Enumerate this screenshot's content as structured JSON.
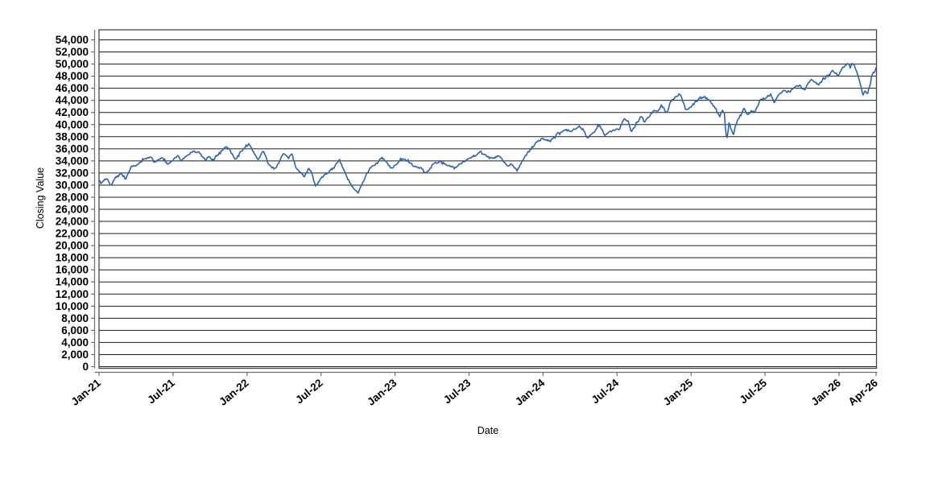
{
  "chart_data": {
    "type": "line",
    "title": "",
    "xlabel": "Date",
    "ylabel": "Closing Value",
    "x_unit": "months-since-Jan-2021",
    "x_range": [
      0,
      63
    ],
    "y_axis": {
      "min": 0,
      "max": 54000,
      "tick_step": 2000,
      "grid": true
    },
    "y_tick_labels": [
      "0",
      "2,000",
      "4,000",
      "6,000",
      "8,000",
      "10,000",
      "12,000",
      "14,000",
      "16,000",
      "18,000",
      "20,000",
      "22,000",
      "24,000",
      "26,000",
      "28,000",
      "30,000",
      "32,000",
      "34,000",
      "36,000",
      "38,000",
      "40,000",
      "42,000",
      "44,000",
      "46,000",
      "48,000",
      "50,000",
      "52,000",
      "54,000"
    ],
    "x_ticks": [
      {
        "t": 0,
        "label": "Jan-21"
      },
      {
        "t": 6,
        "label": "Jul-21"
      },
      {
        "t": 12,
        "label": "Jan-22"
      },
      {
        "t": 18,
        "label": "Jul-22"
      },
      {
        "t": 24,
        "label": "Jan-23"
      },
      {
        "t": 30,
        "label": "Jul-23"
      },
      {
        "t": 36,
        "label": "Jan-24"
      },
      {
        "t": 42,
        "label": "Jul-24"
      },
      {
        "t": 48,
        "label": "Jan-25"
      },
      {
        "t": 54,
        "label": "Jul-25"
      },
      {
        "t": 60,
        "label": "Jan-26"
      },
      {
        "t": 63,
        "label": "Apr-26"
      }
    ],
    "legend": "none",
    "series": [
      {
        "name": "Closing Value",
        "color": "#2d64ad",
        "anchors": [
          [
            0,
            30600
          ],
          [
            0.15,
            30250
          ],
          [
            0.45,
            30900
          ],
          [
            0.65,
            31150
          ],
          [
            0.97,
            29990
          ],
          [
            1.4,
            31450
          ],
          [
            1.8,
            31950
          ],
          [
            2.15,
            30950
          ],
          [
            2.6,
            33000
          ],
          [
            3.0,
            33150
          ],
          [
            3.55,
            34150
          ],
          [
            4.25,
            34750
          ],
          [
            4.45,
            33650
          ],
          [
            5.15,
            34700
          ],
          [
            5.6,
            33350
          ],
          [
            6.4,
            34950
          ],
          [
            6.65,
            34000
          ],
          [
            7.2,
            34950
          ],
          [
            7.55,
            35550
          ],
          [
            8.1,
            35400
          ],
          [
            8.65,
            34050
          ],
          [
            8.9,
            34800
          ],
          [
            9.15,
            34050
          ],
          [
            9.6,
            34900
          ],
          [
            10.25,
            36400
          ],
          [
            10.65,
            35750
          ],
          [
            11.05,
            34100
          ],
          [
            11.5,
            35600
          ],
          [
            11.95,
            36450
          ],
          [
            12.15,
            36750
          ],
          [
            12.9,
            34200
          ],
          [
            13.3,
            35700
          ],
          [
            13.8,
            33200
          ],
          [
            14.3,
            32700
          ],
          [
            14.95,
            35250
          ],
          [
            15.35,
            34450
          ],
          [
            15.65,
            35100
          ],
          [
            15.95,
            33000
          ],
          [
            16.3,
            32250
          ],
          [
            16.65,
            31300
          ],
          [
            17.0,
            32950
          ],
          [
            17.25,
            31900
          ],
          [
            17.55,
            29950
          ],
          [
            18.0,
            31100
          ],
          [
            18.95,
            32800
          ],
          [
            19.5,
            34100
          ],
          [
            20.1,
            31300
          ],
          [
            20.55,
            29600
          ],
          [
            20.97,
            28725
          ],
          [
            21.35,
            30350
          ],
          [
            21.95,
            32850
          ],
          [
            22.5,
            33550
          ],
          [
            22.97,
            34550
          ],
          [
            23.3,
            33800
          ],
          [
            23.65,
            32800
          ],
          [
            23.97,
            33150
          ],
          [
            24.45,
            34300
          ],
          [
            25.05,
            34050
          ],
          [
            25.6,
            32900
          ],
          [
            26.05,
            33000
          ],
          [
            26.5,
            31900
          ],
          [
            27.1,
            33450
          ],
          [
            27.6,
            33950
          ],
          [
            28.2,
            33350
          ],
          [
            28.85,
            32800
          ],
          [
            29.3,
            33550
          ],
          [
            29.97,
            34400
          ],
          [
            30.55,
            34950
          ],
          [
            30.9,
            35550
          ],
          [
            31.5,
            34750
          ],
          [
            31.85,
            34350
          ],
          [
            32.45,
            34850
          ],
          [
            33.1,
            33100
          ],
          [
            33.45,
            33450
          ],
          [
            33.9,
            32420
          ],
          [
            34.4,
            34300
          ],
          [
            34.8,
            35400
          ],
          [
            35.45,
            37050
          ],
          [
            35.95,
            37690
          ],
          [
            36.3,
            37450
          ],
          [
            36.6,
            37300
          ],
          [
            37.1,
            38300
          ],
          [
            37.8,
            39100
          ],
          [
            38.3,
            38900
          ],
          [
            38.93,
            39800
          ],
          [
            39.3,
            39000
          ],
          [
            39.6,
            37800
          ],
          [
            40.1,
            38650
          ],
          [
            40.57,
            39950
          ],
          [
            41.0,
            38200
          ],
          [
            41.45,
            38800
          ],
          [
            41.8,
            39150
          ],
          [
            42.2,
            39300
          ],
          [
            42.57,
            41100
          ],
          [
            42.9,
            40500
          ],
          [
            43.17,
            38750
          ],
          [
            43.6,
            40300
          ],
          [
            43.97,
            41500
          ],
          [
            44.2,
            40400
          ],
          [
            44.7,
            41600
          ],
          [
            44.97,
            42300
          ],
          [
            45.3,
            42150
          ],
          [
            45.6,
            43250
          ],
          [
            46.03,
            41850
          ],
          [
            46.35,
            43900
          ],
          [
            46.97,
            44900
          ],
          [
            47.13,
            45000
          ],
          [
            47.6,
            42350
          ],
          [
            47.9,
            42700
          ],
          [
            48.3,
            43600
          ],
          [
            48.7,
            44500
          ],
          [
            49.1,
            44500
          ],
          [
            49.4,
            44250
          ],
          [
            49.75,
            43300
          ],
          [
            50.0,
            42500
          ],
          [
            50.3,
            41300
          ],
          [
            50.55,
            42350
          ],
          [
            50.7,
            41900
          ],
          [
            50.82,
            38350
          ],
          [
            50.95,
            37650
          ],
          [
            51.05,
            40450
          ],
          [
            51.25,
            39300
          ],
          [
            51.4,
            38150
          ],
          [
            51.7,
            40500
          ],
          [
            51.95,
            41300
          ],
          [
            52.3,
            42650
          ],
          [
            52.6,
            41600
          ],
          [
            52.85,
            42250
          ],
          [
            53.15,
            42050
          ],
          [
            53.6,
            44050
          ],
          [
            54.05,
            44450
          ],
          [
            54.45,
            44950
          ],
          [
            54.75,
            43650
          ],
          [
            55.1,
            44950
          ],
          [
            55.5,
            45600
          ],
          [
            55.8,
            45400
          ],
          [
            56.1,
            45700
          ],
          [
            56.5,
            46350
          ],
          [
            56.85,
            46300
          ],
          [
            57.2,
            45700
          ],
          [
            57.7,
            47450
          ],
          [
            58.1,
            46900
          ],
          [
            58.35,
            46650
          ],
          [
            58.75,
            47600
          ],
          [
            59.15,
            48100
          ],
          [
            59.5,
            48900
          ],
          [
            59.7,
            48600
          ],
          [
            59.95,
            48100
          ],
          [
            60.25,
            49300
          ],
          [
            60.55,
            49950
          ],
          [
            60.72,
            50100
          ],
          [
            60.88,
            49550
          ],
          [
            61.05,
            50050
          ],
          [
            61.25,
            49750
          ],
          [
            61.5,
            48400
          ],
          [
            61.75,
            46600
          ],
          [
            61.95,
            44950
          ],
          [
            62.1,
            45500
          ],
          [
            62.3,
            45050
          ],
          [
            62.5,
            46400
          ],
          [
            62.7,
            48400
          ],
          [
            62.85,
            48600
          ],
          [
            63,
            49400
          ]
        ]
      }
    ],
    "colors": {
      "line": "#2d64ad",
      "grid": "#1c1c1c",
      "frame": "#444444",
      "axis": "#6e6e6e",
      "text": "#000000",
      "background": "#ffffff"
    }
  }
}
